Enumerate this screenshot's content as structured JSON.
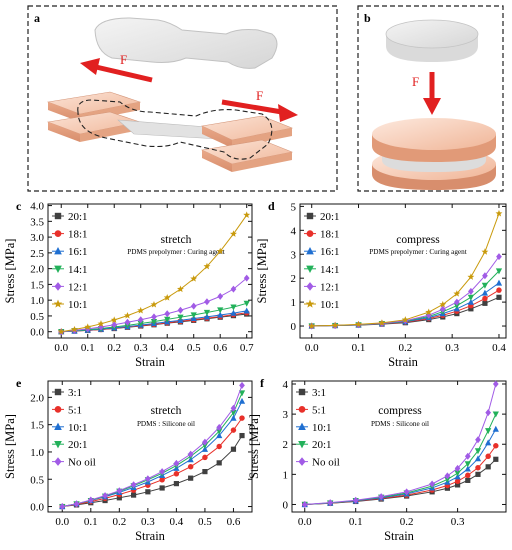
{
  "figure": {
    "panel_letters": {
      "a": "a",
      "b": "b"
    },
    "force_label": "F"
  },
  "chart_data": [
    {
      "panel": "c",
      "type": "line",
      "title": "stretch",
      "subtitle": "PDMS prepolymer : Curing agent",
      "xlabel": "Strain",
      "ylabel": "Stress [MPa]",
      "xlim": [
        -0.05,
        0.72
      ],
      "ylim": [
        -0.2,
        4.05
      ],
      "xticks": [
        "0.0",
        "0.1",
        "0.2",
        "0.3",
        "0.4",
        "0.5",
        "0.6",
        "0.7"
      ],
      "xtick_values": [
        0,
        0.1,
        0.2,
        0.3,
        0.4,
        0.5,
        0.6,
        0.7
      ],
      "yticks": [
        "0.0",
        "0.5",
        "1.0",
        "1.5",
        "2.0",
        "2.5",
        "3.0",
        "3.5",
        "4.0"
      ],
      "ytick_values": [
        0,
        0.5,
        1,
        1.5,
        2,
        2.5,
        3,
        3.5,
        4
      ],
      "x": [
        0,
        0.05,
        0.1,
        0.15,
        0.2,
        0.25,
        0.3,
        0.35,
        0.4,
        0.45,
        0.5,
        0.55,
        0.6,
        0.65,
        0.7
      ],
      "series": [
        {
          "name": "20:1",
          "color": "#404040",
          "marker": "square",
          "values": [
            0,
            0.02,
            0.04,
            0.07,
            0.1,
            0.14,
            0.18,
            0.22,
            0.27,
            0.31,
            0.36,
            0.41,
            0.46,
            0.51,
            0.56
          ]
        },
        {
          "name": "18:1",
          "color": "#e8302a",
          "marker": "circle",
          "values": [
            0,
            0.02,
            0.04,
            0.07,
            0.11,
            0.15,
            0.19,
            0.23,
            0.28,
            0.33,
            0.38,
            0.43,
            0.48,
            0.54,
            0.6
          ]
        },
        {
          "name": "16:1",
          "color": "#1f6fd1",
          "marker": "triangle-up",
          "values": [
            0,
            0.02,
            0.05,
            0.08,
            0.12,
            0.16,
            0.21,
            0.26,
            0.31,
            0.36,
            0.42,
            0.47,
            0.53,
            0.59,
            0.66
          ]
        },
        {
          "name": "14:1",
          "color": "#22b15a",
          "marker": "triangle-down",
          "values": [
            0,
            0.03,
            0.06,
            0.1,
            0.15,
            0.2,
            0.26,
            0.32,
            0.39,
            0.46,
            0.53,
            0.61,
            0.69,
            0.78,
            0.9
          ]
        },
        {
          "name": "12:1",
          "color": "#a15be6",
          "marker": "diamond",
          "values": [
            0,
            0.04,
            0.09,
            0.15,
            0.22,
            0.3,
            0.38,
            0.47,
            0.57,
            0.68,
            0.81,
            0.95,
            1.12,
            1.35,
            1.7
          ]
        },
        {
          "name": "10:1",
          "color": "#c99a0c",
          "marker": "star",
          "values": [
            0,
            0.07,
            0.15,
            0.25,
            0.37,
            0.51,
            0.67,
            0.86,
            1.08,
            1.35,
            1.68,
            2.07,
            2.55,
            3.1,
            3.7
          ]
        }
      ]
    },
    {
      "panel": "d",
      "type": "line",
      "title": "compress",
      "subtitle": "PDMS prepolymer : Curing agent",
      "xlabel": "Strain",
      "ylabel": "Stress [MPa]",
      "xlim": [
        -0.025,
        0.415
      ],
      "ylim": [
        -0.5,
        5.1
      ],
      "xticks": [
        "0.0",
        "0.1",
        "0.2",
        "0.3",
        "0.4"
      ],
      "xtick_values": [
        0,
        0.1,
        0.2,
        0.3,
        0.4
      ],
      "yticks": [
        "0",
        "1",
        "2",
        "3",
        "4",
        "5"
      ],
      "ytick_values": [
        0,
        1,
        2,
        3,
        4,
        5
      ],
      "x": [
        0,
        0.05,
        0.1,
        0.15,
        0.2,
        0.25,
        0.28,
        0.31,
        0.34,
        0.37,
        0.4
      ],
      "series": [
        {
          "name": "20:1",
          "color": "#404040",
          "marker": "square",
          "values": [
            0,
            0.02,
            0.04,
            0.08,
            0.14,
            0.27,
            0.38,
            0.52,
            0.72,
            0.95,
            1.2
          ]
        },
        {
          "name": "18:1",
          "color": "#e8302a",
          "marker": "circle",
          "values": [
            0,
            0.02,
            0.05,
            0.09,
            0.16,
            0.31,
            0.45,
            0.62,
            0.85,
            1.15,
            1.5
          ]
        },
        {
          "name": "16:1",
          "color": "#1f6fd1",
          "marker": "triangle-up",
          "values": [
            0,
            0.02,
            0.05,
            0.1,
            0.18,
            0.35,
            0.52,
            0.72,
            1.0,
            1.38,
            1.8
          ]
        },
        {
          "name": "14:1",
          "color": "#22b15a",
          "marker": "triangle-down",
          "values": [
            0,
            0.02,
            0.05,
            0.1,
            0.2,
            0.4,
            0.6,
            0.85,
            1.2,
            1.7,
            2.3
          ]
        },
        {
          "name": "12:1",
          "color": "#a15be6",
          "marker": "diamond",
          "values": [
            0,
            0.02,
            0.06,
            0.11,
            0.22,
            0.45,
            0.7,
            1.0,
            1.45,
            2.1,
            2.9
          ]
        },
        {
          "name": "10:1",
          "color": "#c99a0c",
          "marker": "star",
          "values": [
            0,
            0.03,
            0.07,
            0.13,
            0.26,
            0.58,
            0.9,
            1.35,
            2.05,
            3.1,
            4.7
          ]
        }
      ]
    },
    {
      "panel": "e",
      "type": "line",
      "title": "stretch",
      "subtitle": "PDMS : Silicone oil",
      "xlabel": "Strain",
      "ylabel": "Stress [MPa]",
      "xlim": [
        -0.05,
        0.665
      ],
      "ylim": [
        -0.1,
        2.3
      ],
      "xticks": [
        "0.0",
        "0.1",
        "0.2",
        "0.3",
        "0.4",
        "0.5",
        "0.6"
      ],
      "xtick_values": [
        0,
        0.1,
        0.2,
        0.3,
        0.4,
        0.5,
        0.6
      ],
      "yticks": [
        "0.0",
        "0.5",
        "1.0",
        "1.5",
        "2.0"
      ],
      "ytick_values": [
        0,
        0.5,
        1,
        1.5,
        2
      ],
      "x": [
        0,
        0.05,
        0.1,
        0.15,
        0.2,
        0.25,
        0.3,
        0.35,
        0.4,
        0.45,
        0.5,
        0.55,
        0.6,
        0.63
      ],
      "series": [
        {
          "name": "3:1",
          "color": "#404040",
          "marker": "square",
          "values": [
            0,
            0.03,
            0.07,
            0.11,
            0.16,
            0.21,
            0.27,
            0.34,
            0.42,
            0.52,
            0.64,
            0.8,
            1.05,
            1.3
          ]
        },
        {
          "name": "5:1",
          "color": "#e8302a",
          "marker": "circle",
          "values": [
            0,
            0.04,
            0.09,
            0.15,
            0.22,
            0.3,
            0.39,
            0.49,
            0.6,
            0.73,
            0.9,
            1.1,
            1.4,
            1.62
          ]
        },
        {
          "name": "10:1",
          "color": "#1f6fd1",
          "marker": "triangle-up",
          "values": [
            0,
            0.05,
            0.11,
            0.18,
            0.26,
            0.35,
            0.45,
            0.57,
            0.7,
            0.86,
            1.05,
            1.3,
            1.62,
            1.93
          ]
        },
        {
          "name": "20:1",
          "color": "#22b15a",
          "marker": "triangle-down",
          "values": [
            0,
            0.05,
            0.11,
            0.19,
            0.28,
            0.38,
            0.49,
            0.61,
            0.75,
            0.92,
            1.12,
            1.38,
            1.72,
            2.08
          ]
        },
        {
          "name": "No oil",
          "color": "#a15be6",
          "marker": "diamond",
          "values": [
            0,
            0.05,
            0.12,
            0.2,
            0.29,
            0.4,
            0.51,
            0.64,
            0.79,
            0.96,
            1.18,
            1.45,
            1.8,
            2.22
          ]
        }
      ]
    },
    {
      "panel": "f",
      "type": "line",
      "title": "compress",
      "subtitle": "PDMS : Silicone oil",
      "xlabel": "Strain",
      "ylabel": "Stress [MPa]",
      "xlim": [
        -0.025,
        0.395
      ],
      "ylim": [
        -0.25,
        4.1
      ],
      "xticks": [
        "0.0",
        "0.1",
        "0.2",
        "0.3"
      ],
      "xtick_values": [
        0,
        0.1,
        0.2,
        0.3
      ],
      "yticks": [
        "0",
        "1",
        "2",
        "3",
        "4"
      ],
      "ytick_values": [
        0,
        1,
        2,
        3,
        4
      ],
      "x": [
        0,
        0.05,
        0.1,
        0.15,
        0.2,
        0.25,
        0.28,
        0.3,
        0.32,
        0.34,
        0.36,
        0.375
      ],
      "series": [
        {
          "name": "3:1",
          "color": "#404040",
          "marker": "square",
          "values": [
            0,
            0.04,
            0.1,
            0.18,
            0.28,
            0.42,
            0.54,
            0.65,
            0.8,
            1.0,
            1.25,
            1.5
          ]
        },
        {
          "name": "5:1",
          "color": "#e8302a",
          "marker": "circle",
          "values": [
            0,
            0.04,
            0.11,
            0.2,
            0.31,
            0.48,
            0.63,
            0.77,
            0.97,
            1.22,
            1.6,
            1.95
          ]
        },
        {
          "name": "10:1",
          "color": "#1f6fd1",
          "marker": "triangle-up",
          "values": [
            0,
            0.05,
            0.12,
            0.22,
            0.35,
            0.55,
            0.74,
            0.92,
            1.18,
            1.52,
            2.05,
            2.5
          ]
        },
        {
          "name": "20:1",
          "color": "#22b15a",
          "marker": "triangle-down",
          "values": [
            0,
            0.05,
            0.13,
            0.24,
            0.38,
            0.61,
            0.83,
            1.04,
            1.35,
            1.78,
            2.45,
            3.0
          ]
        },
        {
          "name": "No oil",
          "color": "#a15be6",
          "marker": "diamond",
          "values": [
            0,
            0.06,
            0.14,
            0.26,
            0.42,
            0.68,
            0.95,
            1.2,
            1.6,
            2.15,
            3.05,
            4.0
          ]
        }
      ]
    }
  ]
}
